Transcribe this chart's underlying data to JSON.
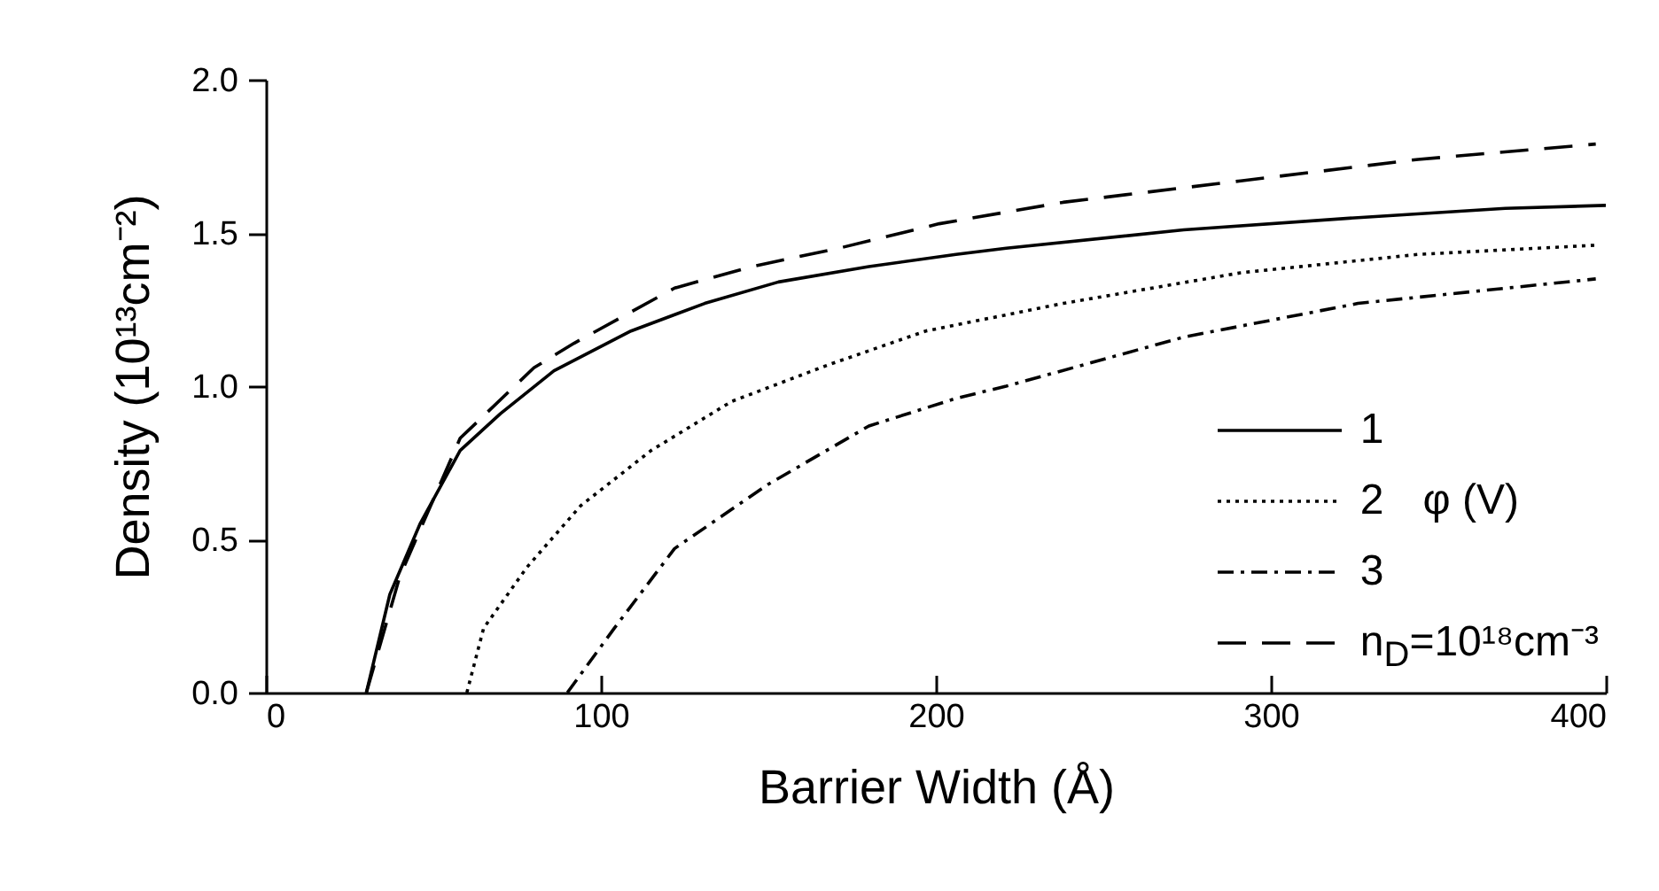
{
  "chart_data": {
    "type": "line",
    "xlabel": "Barrier Width  (Å)",
    "ylabel": "Density  (10¹³cm⁻²)",
    "legend_title": "φ (V)",
    "xlim": [
      0,
      400
    ],
    "xticks": [
      0,
      100,
      200,
      300,
      400
    ],
    "ylim": [
      0,
      2
    ],
    "yticks": [
      {
        "value": 0,
        "label": "0.0"
      },
      0.5,
      {
        "value": 1,
        "label": "1.0"
      },
      1.5,
      {
        "value": 2,
        "label": "2.0"
      }
    ],
    "grid": false,
    "legend": "bottom right",
    "marker": "none",
    "series": [
      {
        "name": "1",
        "color": "#000000",
        "line_style": "solid",
        "x": [
          30,
          37,
          46,
          58,
          70,
          86,
          109,
          131,
          153,
          180,
          206,
          221,
          274,
          326,
          370,
          400
        ],
        "values": [
          0,
          0.32,
          0.55,
          0.79,
          0.91,
          1.05,
          1.18,
          1.27,
          1.34,
          1.39,
          1.43,
          1.45,
          1.51,
          1.55,
          1.58,
          1.59
        ]
      },
      {
        "name": "2",
        "color": "#000000",
        "line_style": "dotted",
        "x": [
          60,
          65,
          78,
          94,
          115,
          139,
          168,
          197,
          238,
          291,
          344,
          397
        ],
        "values": [
          0,
          0.21,
          0.41,
          0.61,
          0.79,
          0.95,
          1.07,
          1.18,
          1.27,
          1.37,
          1.43,
          1.46
        ]
      },
      {
        "name": "3",
        "color": "#000000",
        "line_style": "dashdot",
        "x": [
          90,
          104,
          122,
          150,
          180,
          206,
          221,
          274,
          326,
          397
        ],
        "values": [
          0,
          0.21,
          0.47,
          0.68,
          0.87,
          0.96,
          1.0,
          1.16,
          1.27,
          1.35
        ]
      },
      {
        "name": "n$_{D}$=10¹⁸cm⁻³",
        "color": "#000000",
        "line_style": "dashed",
        "x": [
          30,
          40,
          58,
          80,
          92,
          122,
          145,
          171,
          201,
          238,
          291,
          344,
          397
        ],
        "values": [
          0,
          0.38,
          0.83,
          1.06,
          1.14,
          1.32,
          1.39,
          1.45,
          1.53,
          1.6,
          1.67,
          1.74,
          1.79
        ]
      }
    ]
  }
}
